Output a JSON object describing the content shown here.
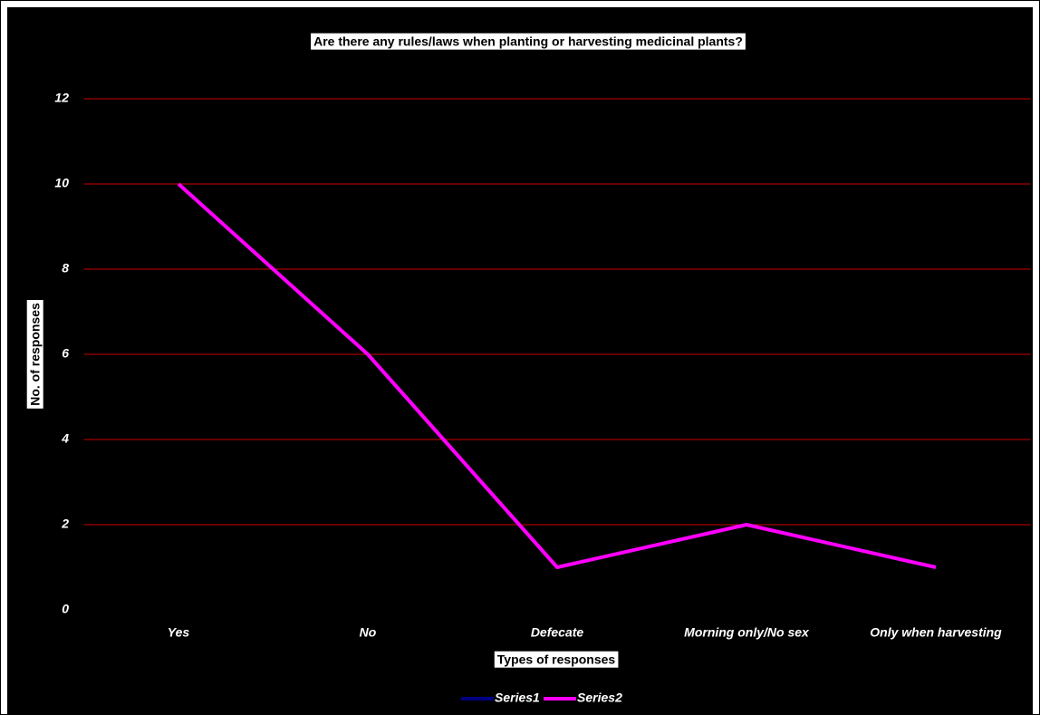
{
  "chart_data": {
    "type": "line",
    "title": "Are there any rules/laws when planting or harvesting medicinal plants?",
    "x_label": "Types of responses",
    "y_label": "No. of responses",
    "categories": [
      "Yes",
      "No",
      "Defecate",
      "Morning only/No sex",
      "Only when harvesting"
    ],
    "series": [
      {
        "name": "Series1",
        "color": "#000080",
        "values": [
          null,
          null,
          null,
          null,
          null
        ]
      },
      {
        "name": "Series2",
        "color": "#ff00ff",
        "values": [
          10,
          6,
          1,
          2,
          1
        ]
      }
    ],
    "ylim": [
      0,
      12
    ],
    "yticks": [
      0,
      2,
      4,
      6,
      8,
      10,
      12
    ],
    "grid": true,
    "grid_color": "#cc0000",
    "legend": "bottom"
  }
}
